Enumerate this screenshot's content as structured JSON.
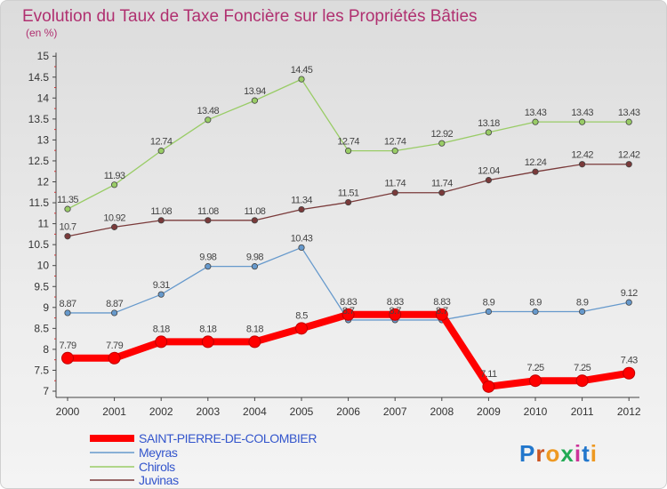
{
  "chart_data": {
    "type": "line",
    "title": "Evolution du Taux de Taxe Foncière sur les Propriétés Bâties",
    "subtitle": "(en %)",
    "x": [
      "2000",
      "2001",
      "2002",
      "2003",
      "2004",
      "2005",
      "2006",
      "2007",
      "2008",
      "2009",
      "2010",
      "2011",
      "2012"
    ],
    "ylim": [
      7,
      15
    ],
    "yticks": [
      "7",
      "7.5",
      "8",
      "8.5",
      "9",
      "9.5",
      "10",
      "10.5",
      "11",
      "11.5",
      "12",
      "12.5",
      "13",
      "13.5",
      "14",
      "14.5",
      "15"
    ],
    "grid": false,
    "legend_position": "bottom-left",
    "series": [
      {
        "name": "SAINT-PIERRE-DE-COLOMBIER",
        "color": "#ff0000",
        "values": [
          7.79,
          7.79,
          8.18,
          8.18,
          8.18,
          8.5,
          8.83,
          8.83,
          8.83,
          7.11,
          7.25,
          7.25,
          7.43
        ],
        "labels": [
          "7.79",
          "7.79",
          "8.18",
          "8.18",
          "8.18",
          "8.5",
          "8.83",
          "8.83",
          "8.83",
          "7.11",
          "7.25",
          "7.25",
          "7.43"
        ]
      },
      {
        "name": "Meyras",
        "color": "#6699cc",
        "values": [
          8.87,
          8.87,
          9.31,
          9.98,
          9.98,
          10.43,
          8.7,
          8.7,
          8.7,
          8.9,
          8.9,
          8.9,
          9.12
        ],
        "labels": [
          "8.87",
          "8.87",
          "9.31",
          "9.98",
          "9.98",
          "10.43",
          "8.7",
          "8.7",
          "8.7",
          "8.9",
          "8.9",
          "8.9",
          "9.12"
        ]
      },
      {
        "name": "Chirols",
        "color": "#99cc66",
        "values": [
          11.35,
          11.93,
          12.74,
          13.48,
          13.94,
          14.45,
          12.74,
          12.74,
          12.92,
          13.18,
          13.43,
          13.43,
          13.43
        ],
        "labels": [
          "11.35",
          "11.93",
          "12.74",
          "13.48",
          "13.94",
          "14.45",
          "12.74",
          "12.74",
          "12.92",
          "13.18",
          "13.43",
          "13.43",
          "13.43"
        ]
      },
      {
        "name": "Juvinas",
        "color": "#7a3a3a",
        "values": [
          10.7,
          10.92,
          11.08,
          11.08,
          11.08,
          11.34,
          11.51,
          11.74,
          11.74,
          12.04,
          12.24,
          12.42,
          12.42
        ],
        "labels": [
          "10.7",
          "10.92",
          "11.08",
          "11.08",
          "11.08",
          "11.34",
          "11.51",
          "11.74",
          "11.74",
          "12.04",
          "12.24",
          "12.42",
          "12.42"
        ]
      }
    ]
  },
  "watermark": {
    "text": "Proxiti"
  }
}
